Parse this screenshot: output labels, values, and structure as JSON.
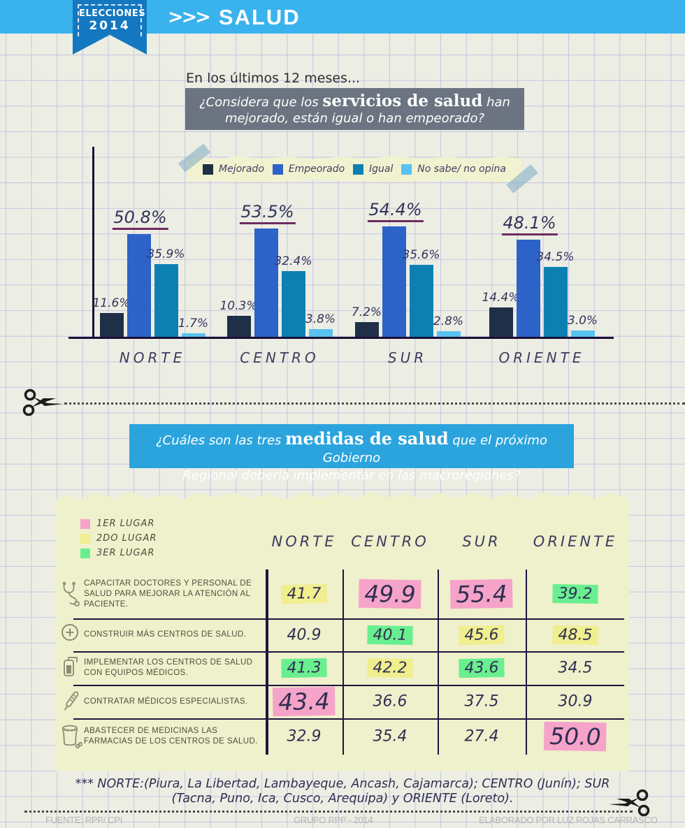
{
  "header": {
    "badge_line1": "ELECCIONES",
    "badge_line2": "2014",
    "arrows": ">>>",
    "title": "SALUD"
  },
  "question1": {
    "intro": "En los últimos 12 meses...",
    "pre": "¿Considera que los ",
    "bold": "servicios de salud",
    "post": " han",
    "line2": "mejorado, están igual o han empeorado?"
  },
  "chart_data": {
    "type": "bar",
    "title": "¿Considera que los servicios de salud han mejorado, están igual o han empeorado?",
    "unit": "%",
    "categories": [
      "NORTE",
      "CENTRO",
      "SUR",
      "ORIENTE"
    ],
    "series": [
      {
        "name": "Mejorado",
        "color": "#1e2f47",
        "values": [
          11.6,
          10.3,
          7.2,
          14.4
        ],
        "labels": [
          "11.6%",
          "10.3%",
          "7.2%",
          "14.4%"
        ]
      },
      {
        "name": "Empeorado",
        "color": "#2d63c8",
        "values": [
          50.8,
          53.5,
          54.4,
          48.1
        ],
        "labels": [
          "50.8%",
          "53.5%",
          "54.4%",
          "48.1%"
        ],
        "emphasized": true
      },
      {
        "name": "Igual",
        "color": "#0d80b2",
        "values": [
          35.9,
          32.4,
          35.6,
          34.5
        ],
        "labels": [
          "35.9%",
          "32.4%",
          "35.6%",
          "34.5%"
        ]
      },
      {
        "name": "No sabe/ no opina",
        "color": "#58c2f0",
        "values": [
          1.7,
          3.8,
          2.8,
          3.0
        ],
        "labels": [
          "1.7%",
          "3.8%",
          "2.8%",
          "3.0%"
        ]
      }
    ],
    "ylim": [
      0,
      60
    ],
    "legend_position": "top",
    "grid": true
  },
  "question2": {
    "pre": "¿Cuáles son las tres ",
    "bold": "medidas de salud",
    "post": " que el próximo Gobierno",
    "line2": "Regional  debería implementar en las macroregiones?"
  },
  "table": {
    "legend": [
      {
        "label": "1ER LUGAR",
        "color": "#f6a3c9"
      },
      {
        "label": "2DO LUGAR",
        "color": "#f0ee8e"
      },
      {
        "label": "3ER LUGAR",
        "color": "#69ef90"
      }
    ],
    "columns": [
      "NORTE",
      "CENTRO",
      "SUR",
      "ORIENTE"
    ],
    "rows": [
      {
        "icon": "stethoscope-icon",
        "label": "CAPACITAR DOCTORES Y PERSONAL DE SALUD PARA MEJORAR LA ATENCIÓN AL PACIENTE.",
        "values": [
          {
            "v": "41.7",
            "hl": "#f0ee8e",
            "big": false
          },
          {
            "v": "49.9",
            "hl": "#f6a3c9",
            "big": true
          },
          {
            "v": "55.4",
            "hl": "#f6a3c9",
            "big": true
          },
          {
            "v": "39.2",
            "hl": "#69ef90",
            "big": false
          }
        ]
      },
      {
        "icon": "cross-circle-icon",
        "label": "CONSTRUIR MÁS CENTROS DE SALUD.",
        "values": [
          {
            "v": "40.9",
            "hl": null,
            "big": false
          },
          {
            "v": "40.1",
            "hl": "#69ef90",
            "big": false
          },
          {
            "v": "45.6",
            "hl": "#f0ee8e",
            "big": false
          },
          {
            "v": "48.5",
            "hl": "#f0ee8e",
            "big": false
          }
        ]
      },
      {
        "icon": "medical-device-icon",
        "label": "IMPLEMENTAR LOS CENTROS DE SALUD CON EQUIPOS MÉDICOS.",
        "values": [
          {
            "v": "41.3",
            "hl": "#69ef90",
            "big": false
          },
          {
            "v": "42.2",
            "hl": "#f0ee8e",
            "big": false
          },
          {
            "v": "43.6",
            "hl": "#69ef90",
            "big": false
          },
          {
            "v": "34.5",
            "hl": null,
            "big": false
          }
        ]
      },
      {
        "icon": "thermometer-icon",
        "label": "CONTRATAR MÉDICOS ESPECIALISTAS.",
        "values": [
          {
            "v": "43.4",
            "hl": "#f6a3c9",
            "big": true
          },
          {
            "v": "36.6",
            "hl": null,
            "big": false
          },
          {
            "v": "37.5",
            "hl": null,
            "big": false
          },
          {
            "v": "30.9",
            "hl": null,
            "big": false
          }
        ]
      },
      {
        "icon": "medicine-jar-icon",
        "label": "ABASTECER DE MEDICINAS LAS FARMACIAS DE LOS CENTROS DE SALUD.",
        "values": [
          {
            "v": "32.9",
            "hl": null,
            "big": false
          },
          {
            "v": "35.4",
            "hl": null,
            "big": false
          },
          {
            "v": "27.4",
            "hl": null,
            "big": false
          },
          {
            "v": "50.0",
            "hl": "#f6a3c9",
            "big": true
          }
        ]
      }
    ]
  },
  "footnote": {
    "line1": "*** NORTE:(Piura, La Libertad, Lambayeque, Ancash, Cajamarca); CENTRO (Junín); SUR",
    "line2": "(Tacna, Puno, Ica, Cusco, Arequipa) y ORIENTE (Loreto)."
  },
  "footer": {
    "source": "FUENTE: RPP/ CPI",
    "center": "GRUPO RPP - 2014",
    "credit": "ELABORADO POR LUZ ROJAS CARRASCO"
  },
  "colors": {
    "header_blue": "#3ab2ee",
    "ribbon_blue": "#1478c0",
    "question1_bg": "#6b7480",
    "question2_bg": "#2ba4dd",
    "paper_bg": "#eff0cc",
    "highlight_pink": "#f6a3c9",
    "highlight_yellow": "#f0ee8e",
    "highlight_green": "#69ef90",
    "axis": "#190f35",
    "label_underline": "#6f2b60"
  }
}
